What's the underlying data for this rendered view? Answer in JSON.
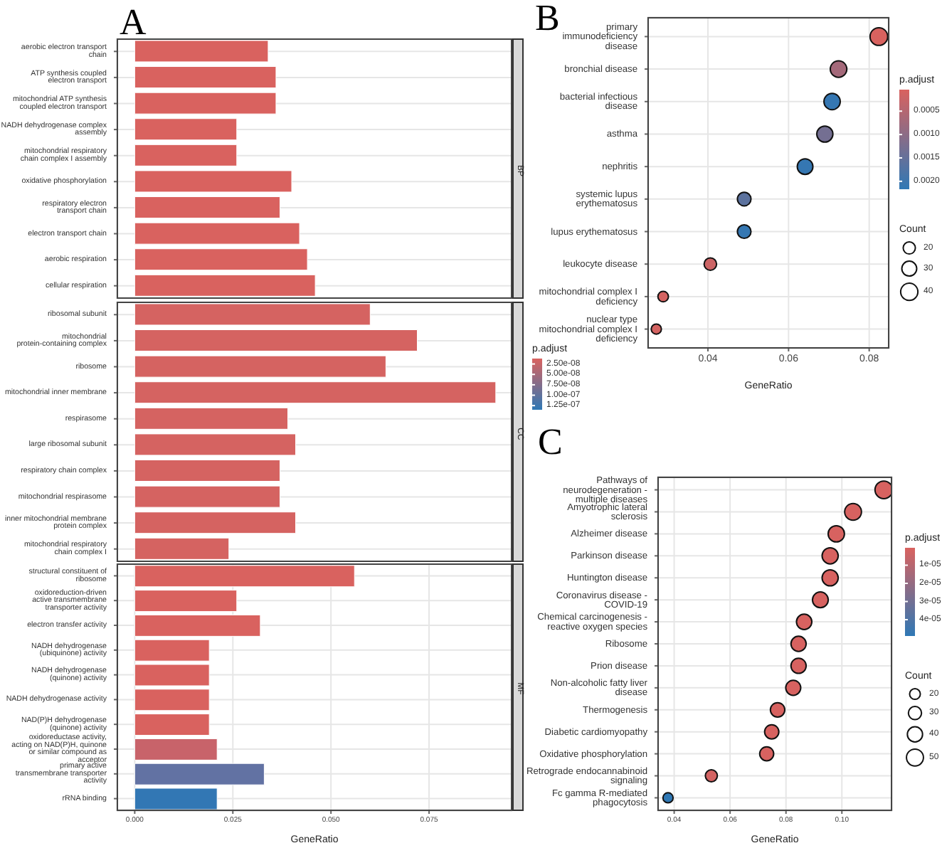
{
  "chart_data": [
    {
      "type": "bar",
      "orientation": "horizontal",
      "title": "BP",
      "annotations": [
        "A"
      ],
      "grid": true,
      "tick_labels": "y",
      "xlim": [
        -0.0046,
        0.0962
      ],
      "xticks": [
        0,
        0.025,
        0.05,
        0.075
      ],
      "categories": [
        "aerobic electron transport chain",
        "ATP synthesis coupled electron transport",
        "mitochondrial ATP synthesis coupled electron transport",
        "NADH dehydrogenase complex assembly",
        "mitochondrial respiratory chain complex I assembly",
        "oxidative phosphorylation",
        "respiratory electron transport chain",
        "electron transport chain",
        "aerobic respiration",
        "cellular respiration"
      ],
      "values": [
        0.034,
        0.036,
        0.036,
        0.026,
        0.026,
        0.04,
        0.037,
        0.042,
        0.044,
        0.046
      ],
      "colors": [
        "#d9625f",
        "#d9625f",
        "#d9625f",
        "#d9625f",
        "#d9625f",
        "#d9625f",
        "#d9625f",
        "#d9625f",
        "#d9625f",
        "#d9625f"
      ]
    },
    {
      "type": "bar",
      "orientation": "horizontal",
      "title": "CC",
      "grid": true,
      "tick_labels": "y",
      "xlim": [
        -0.0046,
        0.0962
      ],
      "xticks": [
        0,
        0.025,
        0.05,
        0.075
      ],
      "categories": [
        "ribosomal subunit",
        "mitochondrial protein-containing complex",
        "ribosome",
        "mitochondrial inner membrane",
        "respirasome",
        "large ribosomal subunit",
        "respiratory chain complex",
        "mitochondrial respirasome",
        "inner mitochondrial membrane protein complex",
        "mitochondrial respiratory chain complex I"
      ],
      "values": [
        0.06,
        0.072,
        0.064,
        0.092,
        0.039,
        0.041,
        0.037,
        0.037,
        0.041,
        0.024
      ],
      "cvalues": [
        1.5e-08,
        1.5e-08,
        1.5e-08,
        1.5e-08,
        1.5e-08,
        1.5e-08,
        1.5e-08,
        1.5e-08,
        1.5e-08,
        1.5e-08
      ],
      "clabel": "p.adjust",
      "clim": [
        1.2e-08,
        1.35e-07
      ],
      "cticks": [
        {
          "value": 2.5e-08,
          "label": "2.50e-08"
        },
        {
          "value": 5e-08,
          "label": "5.00e-08"
        },
        {
          "value": 7.5e-08,
          "label": "7.50e-08"
        },
        {
          "value": 1e-07,
          "label": "1.00e-07"
        },
        {
          "value": 1.25e-07,
          "label": "1.25e-07"
        }
      ]
    },
    {
      "type": "bar",
      "orientation": "horizontal",
      "title": "MF",
      "xlabel": "GeneRatio",
      "grid": true,
      "xlim": [
        -0.0046,
        0.0962
      ],
      "xticks": [
        {
          "value": 0,
          "label": "0.000"
        },
        {
          "value": 0.025,
          "label": "0.025"
        },
        {
          "value": 0.05,
          "label": "0.050"
        },
        {
          "value": 0.075,
          "label": "0.075"
        }
      ],
      "categories": [
        "structural constituent of ribosome",
        "oxidoreduction-driven active transmembrane transporter activity",
        "electron transfer activity",
        "NADH dehydrogenase (ubiquinone) activity",
        "NADH dehydrogenase (quinone) activity",
        "NADH dehydrogenase activity",
        "NAD(P)H dehydrogenase (quinone) activity",
        "oxidoreductase activity, acting on NAD(P)H, quinone or similar compound as acceptor",
        "primary active transmembrane transporter activity",
        "rRNA binding"
      ],
      "values": [
        0.056,
        0.026,
        0.032,
        0.019,
        0.019,
        0.019,
        0.019,
        0.021,
        0.033,
        0.021
      ],
      "colors": [
        "#d9625f",
        "#d9625f",
        "#d9625f",
        "#d9625f",
        "#d9625f",
        "#d9625f",
        "#d9625f",
        "#c8636a",
        "#6272a3",
        "#3277b4"
      ]
    },
    {
      "type": "bubble",
      "orientation": "horizontal",
      "title": "B",
      "xlabel": "GeneRatio",
      "grid": true,
      "xlim": [
        0.025,
        0.085
      ],
      "xticks": [
        0.04,
        0.06,
        0.08
      ],
      "categories": [
        "primary immunodeficiency disease",
        "bronchial disease",
        "bacterial infectious disease",
        "asthma",
        "nephritis",
        "systemic lupus erythematosus",
        "lupus erythematosus",
        "leukocyte disease",
        "mitochondrial complex I deficiency",
        "nuclear type mitochondrial complex I deficiency"
      ],
      "values": [
        0.0824,
        0.0724,
        0.0708,
        0.069,
        0.0641,
        0.049,
        0.049,
        0.0406,
        0.0289,
        0.0272
      ],
      "sizes": [
        42,
        37,
        36,
        35,
        33,
        25,
        25,
        21,
        15,
        14
      ],
      "cvalues": [
        5e-05,
        0.0007,
        0.0021,
        0.0013,
        0.0021,
        0.0016,
        0.0021,
        0.0002,
        0.0001,
        0.0001
      ],
      "clabel": "p.adjust",
      "clim": [
        4e-05,
        0.00217
      ],
      "cticks": [
        {
          "value": 0.0005,
          "label": "0.0005"
        },
        {
          "value": 0.001,
          "label": "0.0010"
        },
        {
          "value": 0.0015,
          "label": "0.0015"
        },
        {
          "value": 0.002,
          "label": "0.0020"
        }
      ],
      "legend_title": "Count",
      "size_legend": [
        20,
        30,
        40
      ]
    },
    {
      "type": "bubble",
      "orientation": "horizontal",
      "title": "C",
      "xlabel": "GeneRatio",
      "grid": true,
      "xlim": [
        0.034,
        0.118
      ],
      "xticks": [
        0.04,
        0.06,
        0.08,
        {
          "value": 0.1,
          "label": "0.10"
        }
      ],
      "categories": [
        "Pathways of neurodegeneration - multiple diseases",
        "Amyotrophic lateral sclerosis",
        "Alzheimer disease",
        "Parkinson disease",
        "Huntington disease",
        "Coronavirus disease - COVID-19",
        "Chemical carcinogenesis - reactive oxygen species",
        "Ribosome",
        "Prion disease",
        "Non-alcoholic fatty liver disease",
        "Thermogenesis",
        "Diabetic cardiomyopathy",
        "Oxidative phosphorylation",
        "Retrograde endocannabinoid signaling",
        "Fc gamma R-mediated phagocytosis"
      ],
      "values": [
        0.115,
        0.104,
        0.098,
        0.0958,
        0.0958,
        0.0923,
        0.0865,
        0.0845,
        0.0845,
        0.0826,
        0.077,
        0.0749,
        0.0731,
        0.0533,
        0.0378
      ],
      "sizes": [
        54,
        49,
        46,
        45,
        45,
        43,
        41,
        40,
        40,
        39,
        36,
        35,
        34,
        25,
        18
      ],
      "cvalues": [
        1e-06,
        1e-06,
        1e-06,
        1e-06,
        1e-06,
        1e-06,
        1e-06,
        1e-06,
        1e-06,
        1e-06,
        1e-06,
        1e-06,
        1e-06,
        2e-06,
        4.9e-05
      ],
      "clabel": "p.adjust",
      "clim": [
        4e-07,
        4.9e-05
      ],
      "cticks": [
        {
          "value": 1e-05,
          "label": "1e-05"
        },
        {
          "value": 2e-05,
          "label": "2e-05"
        },
        {
          "value": 3e-05,
          "label": "3e-05"
        },
        {
          "value": 4e-05,
          "label": "4e-05"
        }
      ],
      "legend_title": "Count",
      "size_legend": [
        20,
        30,
        40,
        50
      ]
    }
  ]
}
